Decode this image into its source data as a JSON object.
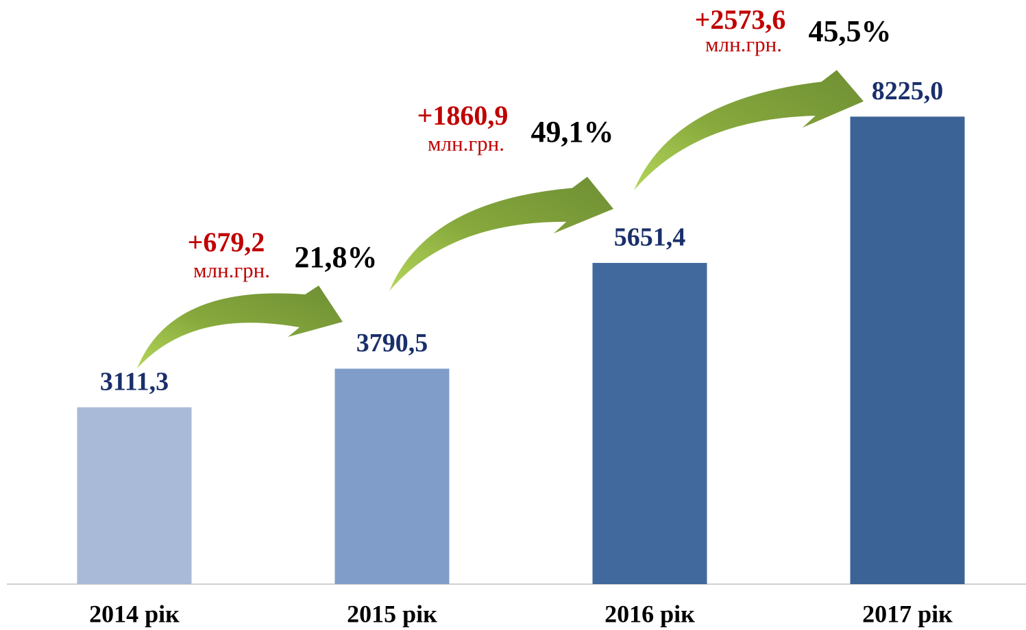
{
  "chart_data": {
    "type": "bar",
    "categories": [
      "2014 рік",
      "2015 рік",
      "2016 рік",
      "2017 рік"
    ],
    "values": [
      3111.3,
      3790.5,
      5651.4,
      8225.0
    ],
    "value_labels": [
      "3111,3",
      "3790,5",
      "5651,4",
      "8225,0"
    ],
    "colors": [
      "#a9bad8",
      "#7f9dc8",
      "#41699e",
      "#3b6396"
    ],
    "ylim": [
      0,
      10000
    ],
    "annotations": [
      {
        "delta": "+679,2",
        "unit": "млн.грн.",
        "percent": "21,8%"
      },
      {
        "delta": "+1860,9",
        "unit": "млн.грн.",
        "percent": "49,1%"
      },
      {
        "delta": "+2573,6",
        "unit": "млн.грн.",
        "percent": "45,5%"
      }
    ]
  }
}
